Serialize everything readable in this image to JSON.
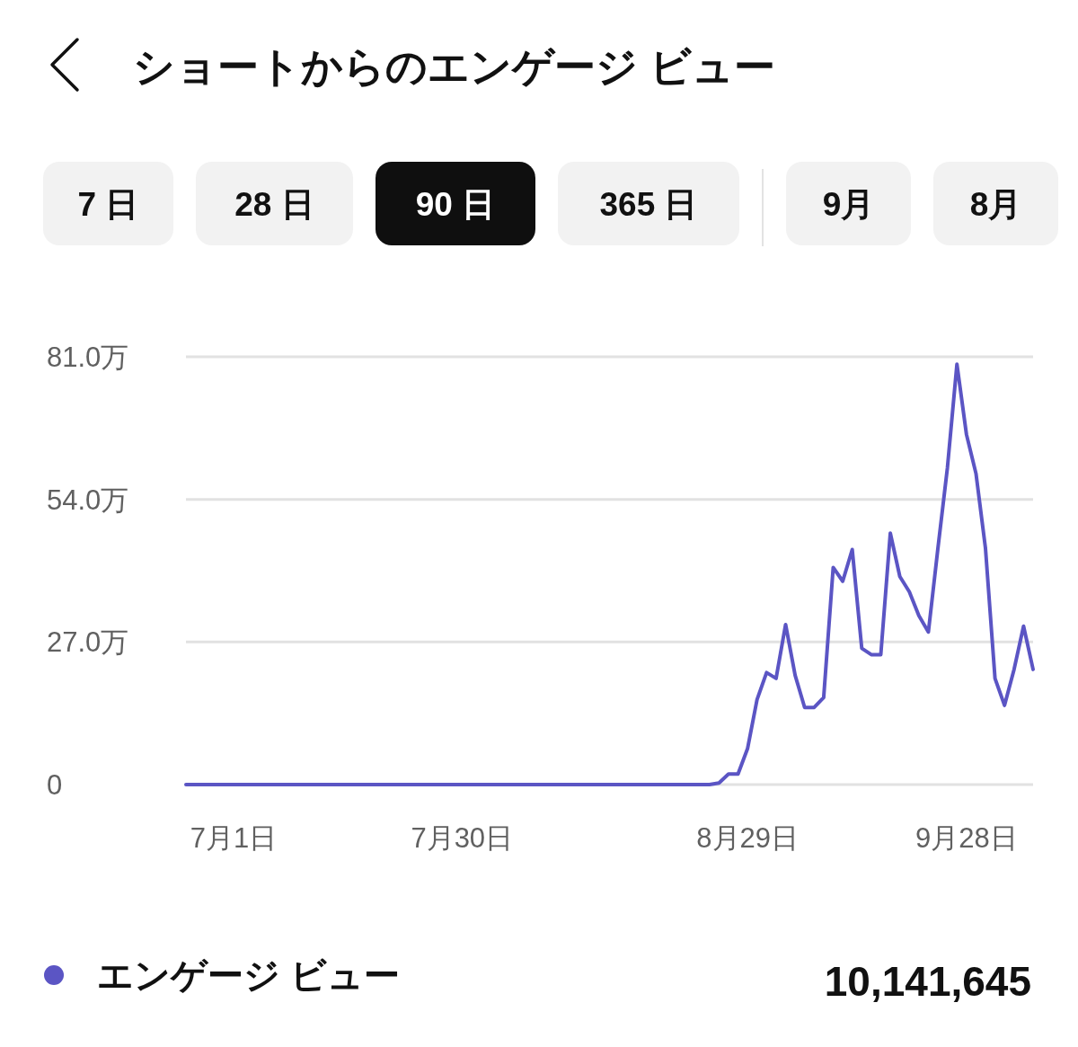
{
  "chart_data": {
    "type": "line",
    "title": "ショートからのエンゲージ ビュー",
    "categories": [
      null,
      null,
      null,
      null,
      null,
      "7月1日",
      null,
      null,
      null,
      null,
      null,
      null,
      null,
      null,
      null,
      null,
      null,
      null,
      null,
      null,
      null,
      null,
      null,
      null,
      null,
      null,
      null,
      null,
      null,
      "7月30日",
      null,
      null,
      null,
      null,
      null,
      null,
      null,
      null,
      null,
      null,
      null,
      null,
      null,
      null,
      null,
      null,
      null,
      null,
      null,
      null,
      null,
      null,
      null,
      null,
      null,
      null,
      null,
      null,
      null,
      "8月29日",
      null,
      null,
      null,
      null,
      null,
      null,
      null,
      null,
      null,
      null,
      null,
      null,
      null,
      null,
      null,
      null,
      null,
      null,
      null,
      null,
      null,
      null,
      "9月28日",
      null,
      null,
      null,
      null,
      null,
      null,
      null
    ],
    "series": [
      {
        "name": "エンゲージ ビュー",
        "color": "#5b55c4",
        "values": [
          0,
          0,
          0,
          0,
          0,
          0,
          0,
          0,
          0,
          0,
          0,
          0,
          0,
          0,
          0,
          0,
          0,
          0,
          0,
          0,
          0,
          0,
          0,
          0,
          0,
          0,
          0,
          0,
          0,
          0,
          0,
          0,
          0,
          0,
          0,
          0,
          0,
          0,
          0,
          0,
          0,
          0,
          0,
          0,
          0,
          0,
          0,
          0,
          0,
          0,
          0,
          0,
          0,
          0,
          0,
          0,
          0.3,
          2,
          2,
          6.8,
          16.1,
          21.2,
          20.1,
          30.3,
          20.7,
          14.6,
          14.6,
          16.5,
          41.1,
          38.5,
          44.5,
          25.8,
          24.6,
          24.6,
          47.6,
          39.4,
          36.5,
          32,
          28.9,
          44.7,
          60,
          79.6,
          66.3,
          58.9,
          44.7,
          20.1,
          15,
          21.8,
          30,
          21.8
        ]
      }
    ],
    "ylim": [
      0,
      81
    ],
    "yticks": [
      0,
      {
        "value": 27,
        "label": "27.0万"
      },
      {
        "value": 54,
        "label": "54.0万"
      },
      {
        "value": 81,
        "label": "81.0万"
      }
    ],
    "grid": "y",
    "legend": "bottom",
    "marker": "none",
    "line_style": "solid",
    "annotations": [
      "7 日",
      "28 日",
      "90 日",
      "365 日",
      "9月",
      "8月",
      "10,141,645"
    ]
  }
}
